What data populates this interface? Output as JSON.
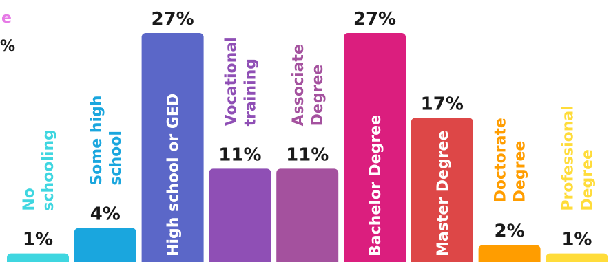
{
  "legend_fragments": {
    "top": "e",
    "bottom": "%"
  },
  "chart_data": {
    "type": "bar",
    "categories": [
      "No schooling",
      "Some high school",
      "High school  or GED",
      "Vocational training",
      "Associate Degree",
      "Bachelor Degree",
      "Master Degree",
      "Doctorate Degree",
      "Professional Degree"
    ],
    "label_lines": [
      [
        "No",
        "schooling"
      ],
      [
        "Some high",
        "school"
      ],
      [
        "High school  or GED"
      ],
      [
        "Vocational",
        "training"
      ],
      [
        "Associate",
        "Degree"
      ],
      [
        "Bachelor Degree"
      ],
      [
        "Master Degree"
      ],
      [
        "Doctorate",
        "Degree"
      ],
      [
        "Professional",
        "Degree"
      ]
    ],
    "values": [
      1,
      4,
      27,
      11,
      11,
      27,
      17,
      2,
      1
    ],
    "value_labels": [
      "1%",
      "4%",
      "27%",
      "11%",
      "11%",
      "27%",
      "17%",
      "2%",
      "1%"
    ],
    "colors": [
      "#3fd6e0",
      "#1aa6de",
      "#5b67c8",
      "#8f4fb5",
      "#a4519e",
      "#db1e7e",
      "#dd4747",
      "#ff9d00",
      "#ffdc3a"
    ],
    "label_placement": [
      "above",
      "above",
      "inside",
      "above",
      "above",
      "inside",
      "inside",
      "above",
      "above"
    ],
    "ylim": [
      0,
      27
    ]
  }
}
